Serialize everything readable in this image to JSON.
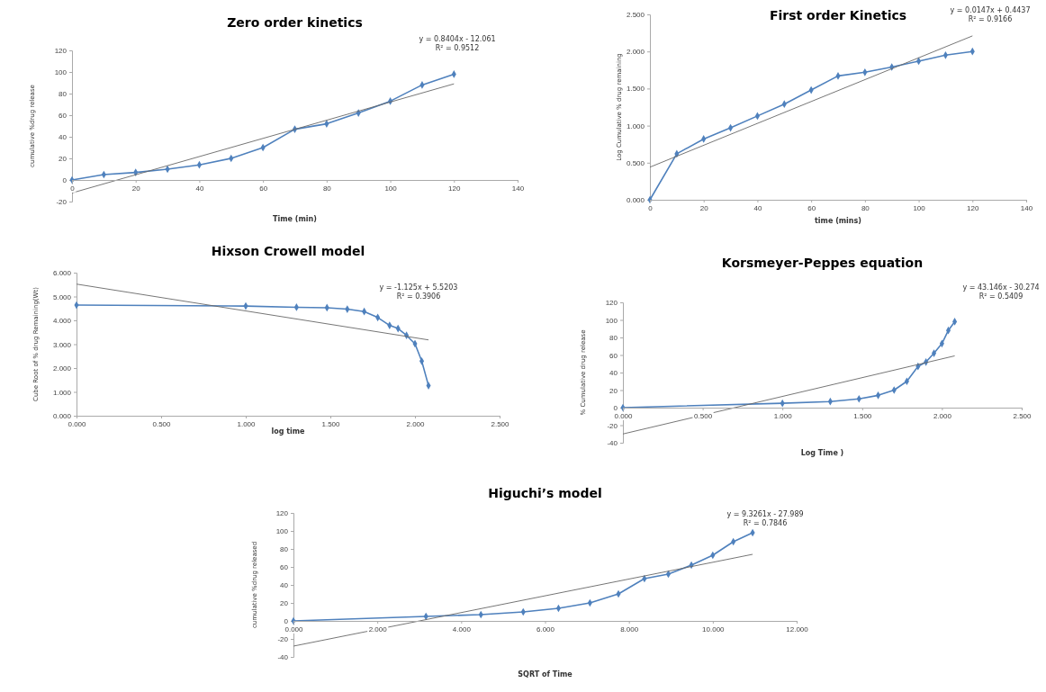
{
  "chart_data": [
    {
      "type": "line",
      "title": "Zero order kinetics",
      "xlabel": "Time (min)",
      "ylabel": "cumulative %drug release",
      "annotations": [
        "y = 0.8404x - 12.061",
        "R² = 0.9512"
      ],
      "xlim": [
        0,
        140
      ],
      "xticks": [
        0,
        20,
        40,
        60,
        80,
        100,
        120,
        140
      ],
      "ylim": [
        -20,
        120
      ],
      "yticks": [
        -20,
        0,
        20,
        40,
        60,
        80,
        100,
        120
      ],
      "series": [
        {
          "color": "#4f81bd",
          "marker": "diamond",
          "x": [
            0,
            10,
            20,
            30,
            40,
            50,
            60,
            70,
            80,
            90,
            100,
            110,
            120
          ],
          "values": [
            0,
            5,
            7,
            10,
            14,
            20,
            30,
            47,
            52,
            62,
            73,
            88,
            98
          ]
        },
        {
          "color": "#666666",
          "marker": "none",
          "x": [
            0,
            120
          ],
          "values": [
            -12,
            89
          ]
        }
      ]
    },
    {
      "type": "line",
      "title": "First order Kinetics",
      "xlabel": "time (mins)",
      "ylabel": "Log Cumulative % drug remaining",
      "annotations": [
        "y = 0.0147x + 0.4437",
        "R² = 0.9166"
      ],
      "xlim": [
        0,
        140
      ],
      "xticks": [
        0,
        20,
        40,
        60,
        80,
        100,
        120,
        140
      ],
      "ylim": [
        0,
        2.5
      ],
      "yticks": [
        {
          "value": 0,
          "label": "0.000"
        },
        {
          "value": 0.5,
          "label": "0.500"
        },
        {
          "value": 1,
          "label": "1.000"
        },
        {
          "value": 1.5,
          "label": "1.500"
        },
        {
          "value": 2,
          "label": "2.000"
        },
        {
          "value": 2.5,
          "label": "2.500"
        }
      ],
      "series": [
        {
          "color": "#4f81bd",
          "marker": "diamond",
          "x": [
            0,
            10,
            20,
            30,
            40,
            50,
            60,
            70,
            80,
            90,
            100,
            110,
            120
          ],
          "values": [
            0,
            0.62,
            0.82,
            0.97,
            1.13,
            1.29,
            1.48,
            1.67,
            1.72,
            1.79,
            1.87,
            1.95,
            2.0
          ]
        },
        {
          "color": "#666666",
          "marker": "none",
          "x": [
            0,
            120
          ],
          "values": [
            0.44,
            2.21
          ]
        }
      ]
    },
    {
      "type": "line",
      "title": "Hixson Crowell model",
      "xlabel": "log time",
      "ylabel": "Cube Root of % drug Remaining(Wt)",
      "annotations": [
        "y = -1.125x + 5.5203",
        "R² = 0.3906"
      ],
      "xlim": [
        0,
        2.5
      ],
      "xticks": [
        {
          "value": 0,
          "label": "0.000"
        },
        {
          "value": 0.5,
          "label": "0.500"
        },
        {
          "value": 1,
          "label": "1.000"
        },
        {
          "value": 1.5,
          "label": "1.500"
        },
        {
          "value": 2,
          "label": "2.000"
        },
        {
          "value": 2.5,
          "label": "2.500"
        }
      ],
      "ylim": [
        0,
        6
      ],
      "yticks": [
        {
          "value": 0,
          "label": "0.000"
        },
        {
          "value": 1,
          "label": "1.000"
        },
        {
          "value": 2,
          "label": "2.000"
        },
        {
          "value": 3,
          "label": "3.000"
        },
        {
          "value": 4,
          "label": "4.000"
        },
        {
          "value": 5,
          "label": "5.000"
        },
        {
          "value": 6,
          "label": "6.000"
        }
      ],
      "series": [
        {
          "color": "#4f81bd",
          "marker": "diamond",
          "x": [
            0,
            1.0,
            1.3,
            1.48,
            1.6,
            1.7,
            1.78,
            1.85,
            1.9,
            1.95,
            2.0,
            2.04,
            2.08
          ],
          "values": [
            4.64,
            4.6,
            4.55,
            4.53,
            4.47,
            4.37,
            4.12,
            3.79,
            3.66,
            3.37,
            3.02,
            2.29,
            1.26
          ]
        },
        {
          "color": "#666666",
          "marker": "none",
          "x": [
            0,
            2.08
          ],
          "values": [
            5.52,
            3.18
          ]
        }
      ]
    },
    {
      "type": "line",
      "title": "Korsmeyer-Peppes equation",
      "xlabel": "Log Time )",
      "ylabel": "% Cumulative drug release",
      "annotations": [
        "y = 43.146x - 30.274",
        "R² = 0.5409"
      ],
      "xlim": [
        0,
        2.5
      ],
      "xticks": [
        {
          "value": 0,
          "label": "0.000"
        },
        {
          "value": 0.5,
          "label": "0.500"
        },
        {
          "value": 1,
          "label": "1.000"
        },
        {
          "value": 1.5,
          "label": "1.500"
        },
        {
          "value": 2,
          "label": "2.000"
        },
        {
          "value": 2.5,
          "label": "2.500"
        }
      ],
      "ylim": [
        -40,
        120
      ],
      "yticks": [
        -40,
        -20,
        0,
        20,
        40,
        60,
        80,
        100,
        120
      ],
      "series": [
        {
          "color": "#4f81bd",
          "marker": "diamond",
          "x": [
            0,
            1.0,
            1.3,
            1.48,
            1.6,
            1.7,
            1.78,
            1.85,
            1.9,
            1.95,
            2.0,
            2.04,
            2.08
          ],
          "values": [
            0,
            5,
            7,
            10,
            14,
            20,
            30,
            47,
            52,
            62,
            73,
            88,
            98
          ]
        },
        {
          "color": "#666666",
          "marker": "none",
          "x": [
            0,
            2.08
          ],
          "values": [
            -30,
            59
          ]
        }
      ]
    },
    {
      "type": "line",
      "title": "Higuchi’s model",
      "xlabel": "SQRT of Time",
      "ylabel": "cumulative %drug released",
      "annotations": [
        "y = 9.3261x - 27.989",
        "R² = 0.7846"
      ],
      "xlim": [
        0,
        12
      ],
      "xticks": [
        {
          "value": 0,
          "label": "0.000"
        },
        {
          "value": 2,
          "label": "2.000"
        },
        {
          "value": 4,
          "label": "4.000"
        },
        {
          "value": 6,
          "label": "6.000"
        },
        {
          "value": 8,
          "label": "8.000"
        },
        {
          "value": 10,
          "label": "10.000"
        },
        {
          "value": 12,
          "label": "12.000"
        }
      ],
      "ylim": [
        -40,
        120
      ],
      "yticks": [
        -40,
        -20,
        0,
        20,
        40,
        60,
        80,
        100,
        120
      ],
      "series": [
        {
          "color": "#4f81bd",
          "marker": "diamond",
          "x": [
            0,
            3.16,
            4.47,
            5.48,
            6.32,
            7.07,
            7.75,
            8.37,
            8.94,
            9.49,
            10.0,
            10.49,
            10.95
          ],
          "values": [
            0,
            5,
            7,
            10,
            14,
            20,
            30,
            47,
            52,
            62,
            73,
            88,
            98
          ]
        },
        {
          "color": "#666666",
          "marker": "none",
          "x": [
            0,
            10.95
          ],
          "values": [
            -28,
            74
          ]
        }
      ]
    }
  ]
}
